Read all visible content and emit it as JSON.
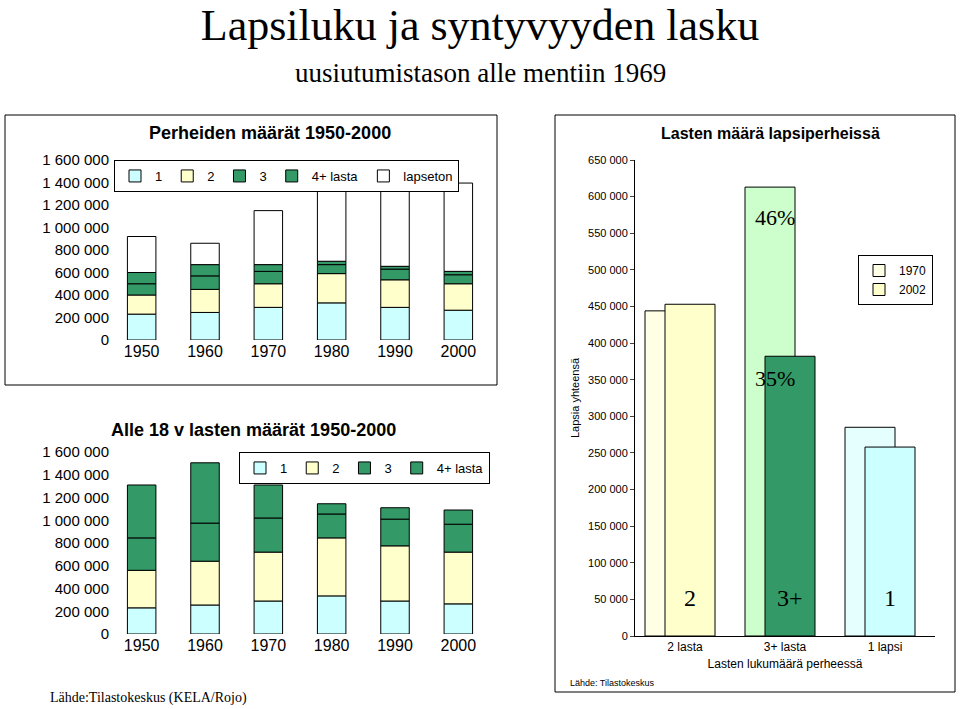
{
  "title": "Lapsiluku ja syntyvyyden lasku",
  "subtitle": "uusiutumistason alle mentiin 1969",
  "chart_data": [
    {
      "type": "bar",
      "stacked": true,
      "title": "Perheiden määrät 1950-2000",
      "categories": [
        "1950",
        "1960",
        "1970",
        "1980",
        "1990",
        "2000"
      ],
      "series": [
        {
          "name": "1",
          "color": "#ccffff",
          "values": [
            230000,
            245000,
            290000,
            330000,
            290000,
            265000
          ]
        },
        {
          "name": "2",
          "color": "#ffffcc",
          "values": [
            170000,
            205000,
            210000,
            260000,
            245000,
            235000
          ]
        },
        {
          "name": "3",
          "color": "#339966",
          "values": [
            100000,
            120000,
            110000,
            80000,
            95000,
            80000
          ]
        },
        {
          "name": "4+ lasta",
          "color": "#339966",
          "values": [
            100000,
            100000,
            60000,
            30000,
            25000,
            30000
          ]
        },
        {
          "name": "lapseton",
          "color": "#ffffff",
          "values": [
            320000,
            190000,
            480000,
            670000,
            705000,
            785000
          ]
        }
      ],
      "ylim": [
        0,
        1600000
      ],
      "yticks": [
        0,
        {
          "value": 200000,
          "label": "200 000"
        },
        {
          "value": 400000,
          "label": "400 000"
        },
        {
          "value": 600000,
          "label": "600 000"
        },
        {
          "value": 800000,
          "label": "800 000"
        },
        {
          "value": 1000000,
          "label": "1 000 000"
        },
        {
          "value": 1200000,
          "label": "1 200 000"
        },
        {
          "value": 1400000,
          "label": "1 400 000"
        },
        {
          "value": 1600000,
          "label": "1 600 000"
        }
      ],
      "grid": false,
      "legend": "top left",
      "data_labels": false
    },
    {
      "type": "bar",
      "stacked": true,
      "title": "Alle 18 v lasten määrät 1950-2000",
      "categories": [
        "1950",
        "1960",
        "1970",
        "1980",
        "1990",
        "2000"
      ],
      "series": [
        {
          "name": "1",
          "color": "#ccffff",
          "values": [
            230000,
            255000,
            290000,
            335000,
            290000,
            265000
          ]
        },
        {
          "name": "2",
          "color": "#ffffcc",
          "values": [
            330000,
            385000,
            430000,
            510000,
            485000,
            455000
          ]
        },
        {
          "name": "3",
          "color": "#339966",
          "values": [
            285000,
            335000,
            300000,
            210000,
            235000,
            245000
          ]
        },
        {
          "name": "4+ lasta",
          "color": "#339966",
          "values": [
            465000,
            530000,
            290000,
            90000,
            100000,
            125000
          ]
        }
      ],
      "ylim": [
        0,
        1600000
      ],
      "yticks": [
        0,
        {
          "value": 200000,
          "label": "200 000"
        },
        {
          "value": 400000,
          "label": "400 000"
        },
        {
          "value": 600000,
          "label": "600 000"
        },
        {
          "value": 800000,
          "label": "800 000"
        },
        {
          "value": 1000000,
          "label": "1 000 000"
        },
        {
          "value": 1200000,
          "label": "1 200 000"
        },
        {
          "value": 1400000,
          "label": "1 400 000"
        },
        {
          "value": 1600000,
          "label": "1 600 000"
        }
      ],
      "grid": false,
      "legend": "top right",
      "data_labels": false,
      "source": "Lähde:Tilastokeskus (KELA/Rojo)"
    },
    {
      "type": "bar",
      "stacked": false,
      "title": "Lasten määrä lapsiperheissä",
      "x_label": "Lasten lukumäärä perheessä",
      "y_label": "Lapsia yhteensä",
      "categories": [
        "2 lasta",
        "3+ lasta",
        "1 lapsi"
      ],
      "series": [
        {
          "name": "1970",
          "colors": [
            "#ffffe5",
            "#ccffcc",
            "#e5ffff"
          ],
          "values": [
            444000,
            613000,
            285000
          ]
        },
        {
          "name": "2002",
          "colors": [
            "#ffffcc",
            "#339966",
            "#ccffff"
          ],
          "values": [
            453000,
            382000,
            258000
          ]
        }
      ],
      "ylim": [
        0,
        650000
      ],
      "yticks": [
        0,
        {
          "value": 50000,
          "label": "50 000"
        },
        {
          "value": 100000,
          "label": "100 000"
        },
        {
          "value": 150000,
          "label": "150 000"
        },
        {
          "value": 200000,
          "label": "200 000"
        },
        {
          "value": 250000,
          "label": "250 000"
        },
        {
          "value": 300000,
          "label": "300 000"
        },
        {
          "value": 350000,
          "label": "350 000"
        },
        {
          "value": 400000,
          "label": "400 000"
        },
        {
          "value": 450000,
          "label": "450 000"
        },
        {
          "value": 500000,
          "label": "500 000"
        },
        {
          "value": 550000,
          "label": "550 000"
        },
        {
          "value": 600000,
          "label": "600 000"
        },
        {
          "value": 650000,
          "label": "650 000"
        }
      ],
      "annotations": [
        {
          "text": "46%",
          "x": "3+ lasta",
          "y": 571000
        },
        {
          "text": "35%",
          "x": "3+ lasta",
          "y": 352000
        },
        {
          "text": "2",
          "x": "2 lasta",
          "y": 52000
        },
        {
          "text": "3+",
          "x": "3+ lasta",
          "y": 52000
        },
        {
          "text": "1",
          "x": "1 lapsi",
          "y": 52000
        }
      ],
      "grid": false,
      "legend": "top right",
      "data_labels": false,
      "source": "Lähde: Tilastokeskus"
    }
  ]
}
